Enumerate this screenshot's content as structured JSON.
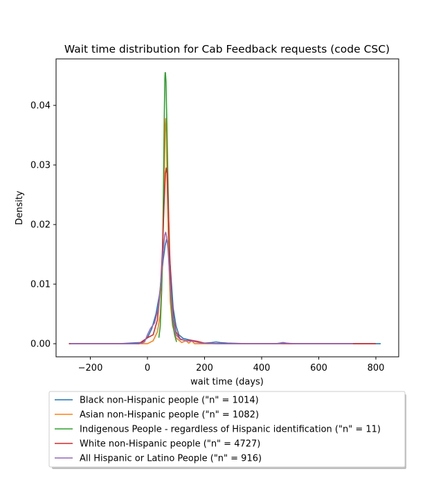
{
  "chart_data": {
    "type": "line",
    "title": "Wait time distribution  for Cab Feedback requests (code CSC)",
    "xlabel": "wait time (days)",
    "ylabel": "Density",
    "xlim": [
      -320,
      880
    ],
    "ylim": [
      -0.0022,
      0.0478
    ],
    "xticks": [
      -200,
      0,
      200,
      400,
      600,
      800
    ],
    "xtick_labels": [
      "−200",
      "0",
      "200",
      "400",
      "600",
      "800"
    ],
    "yticks": [
      0.0,
      0.01,
      0.02,
      0.03,
      0.04
    ],
    "ytick_labels": [
      "0.00",
      "0.01",
      "0.02",
      "0.03",
      "0.04"
    ],
    "grid": false,
    "legend_position": "below plot",
    "series": [
      {
        "name": "Black non-Hispanic people (\"n\" = 1014)",
        "color": "#1f77b4",
        "points": [
          [
            -275,
            0
          ],
          [
            -200,
            0
          ],
          [
            -100,
            0
          ],
          [
            -20,
            0.0002
          ],
          [
            0,
            0.001
          ],
          [
            15,
            0.0025
          ],
          [
            30,
            0.005
          ],
          [
            45,
            0.009
          ],
          [
            55,
            0.014
          ],
          [
            62,
            0.0165
          ],
          [
            67,
            0.0175
          ],
          [
            72,
            0.017
          ],
          [
            80,
            0.013
          ],
          [
            90,
            0.006
          ],
          [
            100,
            0.003
          ],
          [
            110,
            0.0015
          ],
          [
            125,
            0.0009
          ],
          [
            150,
            0.0006
          ],
          [
            175,
            0.0003
          ],
          [
            200,
            0.0001
          ],
          [
            225,
            0.0002
          ],
          [
            240,
            0.0003
          ],
          [
            255,
            0.0002
          ],
          [
            280,
            0.0001
          ],
          [
            350,
            0
          ],
          [
            450,
            0
          ],
          [
            475,
            0.0002
          ],
          [
            500,
            0
          ],
          [
            600,
            0
          ],
          [
            700,
            0
          ],
          [
            817,
            0
          ]
        ]
      },
      {
        "name": "Asian non-Hispanic people (\"n\" = 1082)",
        "color": "#ff7f0e",
        "points": [
          [
            -250,
            0
          ],
          [
            -150,
            0
          ],
          [
            -50,
            0
          ],
          [
            0,
            0
          ],
          [
            20,
            0.0005
          ],
          [
            35,
            0.002
          ],
          [
            45,
            0.005
          ],
          [
            52,
            0.012
          ],
          [
            58,
            0.025
          ],
          [
            62,
            0.0365
          ],
          [
            64,
            0.0378
          ],
          [
            66,
            0.0355
          ],
          [
            70,
            0.025
          ],
          [
            75,
            0.014
          ],
          [
            80,
            0.007
          ],
          [
            88,
            0.003
          ],
          [
            100,
            0.001
          ],
          [
            120,
            0.0002
          ],
          [
            135,
            0.0005
          ],
          [
            145,
            0.0001
          ],
          [
            155,
            0.0005
          ],
          [
            165,
            0
          ],
          [
            200,
            0
          ],
          [
            300,
            0
          ],
          [
            450,
            0
          ],
          [
            475,
            0.0001
          ],
          [
            500,
            0
          ],
          [
            600,
            0
          ],
          [
            720,
            0
          ]
        ]
      },
      {
        "name": "Indigenous People - regardless of Hispanic identification (\"n\" = 11)",
        "color": "#2ca02c",
        "points": [
          [
            40,
            0.001
          ],
          [
            45,
            0.003
          ],
          [
            50,
            0.009
          ],
          [
            54,
            0.018
          ],
          [
            57,
            0.03
          ],
          [
            59,
            0.038
          ],
          [
            61,
            0.0445
          ],
          [
            62,
            0.0455
          ],
          [
            63,
            0.0455
          ],
          [
            65,
            0.044
          ],
          [
            68,
            0.037
          ],
          [
            72,
            0.027
          ],
          [
            76,
            0.017
          ],
          [
            81,
            0.009
          ],
          [
            87,
            0.004
          ],
          [
            95,
            0.0015
          ],
          [
            102,
            0.0003
          ]
        ]
      },
      {
        "name": "White non-Hispanic people (\"n\" = 4727)",
        "color": "#d62728",
        "points": [
          [
            -275,
            0
          ],
          [
            -200,
            0
          ],
          [
            -100,
            0
          ],
          [
            -30,
            0
          ],
          [
            0,
            0.001
          ],
          [
            20,
            0.0015
          ],
          [
            35,
            0.004
          ],
          [
            45,
            0.009
          ],
          [
            52,
            0.015
          ],
          [
            58,
            0.023
          ],
          [
            63,
            0.0285
          ],
          [
            66,
            0.0295
          ],
          [
            69,
            0.0285
          ],
          [
            73,
            0.023
          ],
          [
            78,
            0.015
          ],
          [
            84,
            0.008
          ],
          [
            92,
            0.004
          ],
          [
            100,
            0.002
          ],
          [
            115,
            0.0008
          ],
          [
            135,
            0.0005
          ],
          [
            150,
            0.0006
          ],
          [
            175,
            0.0004
          ],
          [
            200,
            0.0001
          ],
          [
            250,
            0
          ],
          [
            350,
            0
          ],
          [
            500,
            0
          ],
          [
            650,
            0
          ],
          [
            800,
            0
          ]
        ]
      },
      {
        "name": "All Hispanic or Latino People (\"n\" = 916)",
        "color": "#9467bd",
        "points": [
          [
            -270,
            0
          ],
          [
            -150,
            0
          ],
          [
            -50,
            0
          ],
          [
            -20,
            0.0001
          ],
          [
            -10,
            0.0003
          ],
          [
            0,
            0.0015
          ],
          [
            10,
            0.0025
          ],
          [
            25,
            0.0035
          ],
          [
            38,
            0.006
          ],
          [
            48,
            0.011
          ],
          [
            56,
            0.016
          ],
          [
            61,
            0.0183
          ],
          [
            64,
            0.0187
          ],
          [
            67,
            0.018
          ],
          [
            72,
            0.016
          ],
          [
            80,
            0.01
          ],
          [
            90,
            0.004
          ],
          [
            100,
            0.0015
          ],
          [
            115,
            0.0007
          ],
          [
            140,
            0.0005
          ],
          [
            160,
            0.0004
          ],
          [
            190,
            0.0001
          ],
          [
            250,
            0
          ],
          [
            350,
            0
          ],
          [
            450,
            0
          ],
          [
            480,
            0.0001
          ],
          [
            520,
            0
          ],
          [
            600,
            0
          ],
          [
            720,
            0
          ]
        ]
      }
    ]
  }
}
